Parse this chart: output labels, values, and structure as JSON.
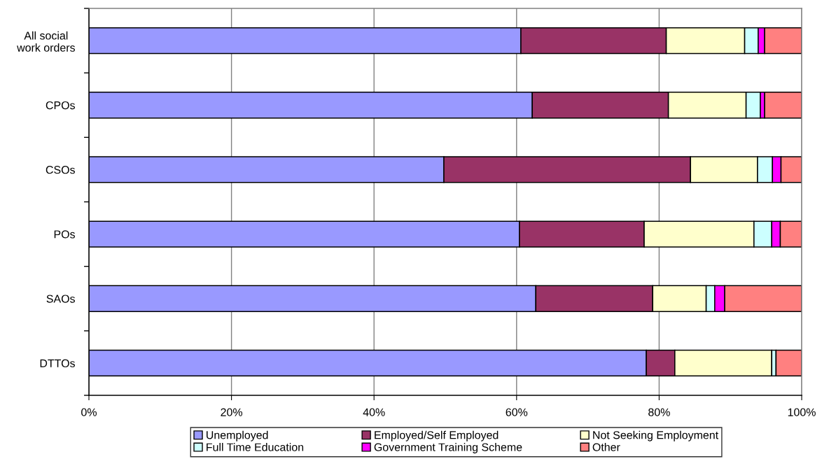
{
  "chart_data": {
    "type": "bar",
    "orientation": "horizontal",
    "stacked": true,
    "categories": [
      "All social\nwork orders",
      "CPOs",
      "CSOs",
      "POs",
      "SAOs",
      "DTTOs"
    ],
    "series": [
      {
        "name": "Unemployed",
        "color": "#9999ff",
        "values": [
          60.6,
          62.2,
          49.8,
          60.4,
          62.7,
          78.2
        ]
      },
      {
        "name": "Employed/Self Employed",
        "color": "#993366",
        "values": [
          20.4,
          19.1,
          34.6,
          17.5,
          16.4,
          4.0
        ]
      },
      {
        "name": "Not Seeking Employment",
        "color": "#ffffcc",
        "values": [
          11.0,
          10.9,
          9.4,
          15.4,
          7.5,
          13.6
        ]
      },
      {
        "name": "Full Time Education",
        "color": "#ccffff",
        "values": [
          1.9,
          2.0,
          2.1,
          2.5,
          1.2,
          0.6
        ]
      },
      {
        "name": "Government Training Scheme",
        "color": "#ff00ff",
        "values": [
          0.9,
          0.6,
          1.2,
          1.2,
          1.4,
          null
        ]
      },
      {
        "name": "Other",
        "color": "#ff8080",
        "values": [
          5.2,
          5.2,
          2.9,
          3.0,
          10.8,
          3.6
        ]
      }
    ],
    "xlim": [
      0,
      100
    ],
    "xticks": [
      {
        "value": 0,
        "label": "0%"
      },
      {
        "value": 20,
        "label": "20%"
      },
      {
        "value": 40,
        "label": "40%"
      },
      {
        "value": 60,
        "label": "60%"
      },
      {
        "value": 80,
        "label": "80%"
      },
      {
        "value": 100,
        "label": "100%"
      }
    ],
    "grid": "x",
    "legend": "bottom"
  }
}
